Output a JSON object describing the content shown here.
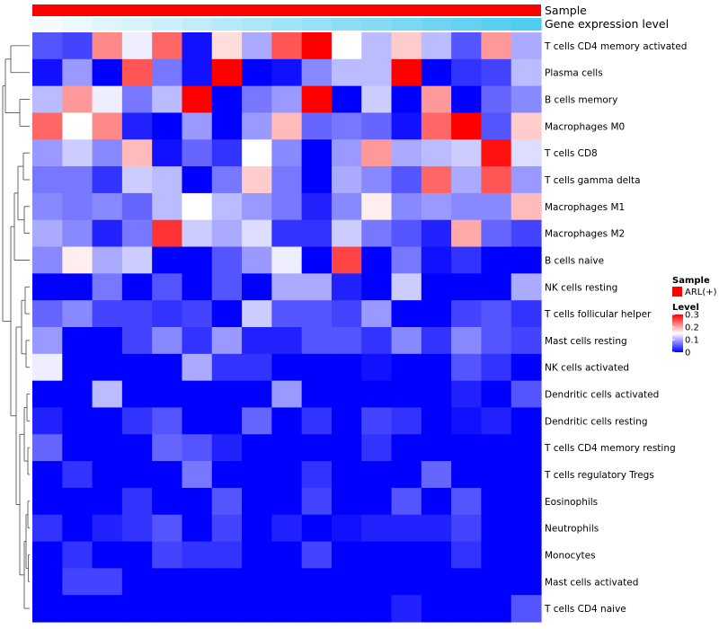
{
  "chart_data": {
    "type": "heatmap",
    "annotations": {
      "sample_label": "Sample",
      "expression_label": "Gene expression level",
      "sample_color": "#ff0000",
      "expression_gradient": [
        "#f5fbfd",
        "#4fcdf0"
      ]
    },
    "rows": [
      "T cells CD4 memory activated",
      "Plasma cells",
      "B cells memory",
      "Macrophages M0",
      "T cells CD8",
      "T cells gamma delta",
      "Macrophages M1",
      "Macrophages M2",
      "B cells naive",
      "NK cells resting",
      "T cells follicular helper",
      "Mast cells resting",
      "NK cells activated",
      "Dendritic cells activated",
      "Dendritic cells resting",
      "T cells CD4 memory resting",
      "T cells regulatory  Tregs",
      "Eosinophils",
      "Neutrophils",
      "Monocytes",
      "Mast cells activated",
      "T cells CD4 naive"
    ],
    "values": [
      [
        0.05,
        0.04,
        0.22,
        0.14,
        0.24,
        0.01,
        0.17,
        0.1,
        0.25,
        0.3,
        0.15,
        0.11,
        0.18,
        0.11,
        0.05,
        0.21,
        0.1
      ],
      [
        0.01,
        0.09,
        0.0,
        0.25,
        0.07,
        0.01,
        0.3,
        0.0,
        0.01,
        0.08,
        0.11,
        0.11,
        0.3,
        0.0,
        0.03,
        0.04,
        0.11
      ],
      [
        0.11,
        0.21,
        0.14,
        0.07,
        0.11,
        0.3,
        0.0,
        0.07,
        0.09,
        0.3,
        0.0,
        0.12,
        0.0,
        0.21,
        0.0,
        0.06,
        0.08
      ],
      [
        0.24,
        0.15,
        0.22,
        0.02,
        0.0,
        0.09,
        0.0,
        0.09,
        0.19,
        0.06,
        0.07,
        0.06,
        0.01,
        0.24,
        0.3,
        0.05,
        0.18
      ],
      [
        0.09,
        0.12,
        0.08,
        0.19,
        0.01,
        0.06,
        0.03,
        0.15,
        0.08,
        0.0,
        0.09,
        0.21,
        0.1,
        0.11,
        0.12,
        0.29,
        0.13
      ],
      [
        0.07,
        0.07,
        0.03,
        0.12,
        0.11,
        0.0,
        0.07,
        0.18,
        0.07,
        0.0,
        0.1,
        0.08,
        0.05,
        0.24,
        0.1,
        0.25,
        0.09
      ],
      [
        0.08,
        0.07,
        0.08,
        0.06,
        0.11,
        0.15,
        0.11,
        0.09,
        0.07,
        0.02,
        0.08,
        0.16,
        0.08,
        0.09,
        0.08,
        0.08,
        0.19
      ],
      [
        0.1,
        0.08,
        0.02,
        0.07,
        0.27,
        0.12,
        0.1,
        0.13,
        0.03,
        0.03,
        0.12,
        0.07,
        0.05,
        0.02,
        0.2,
        0.06,
        0.04
      ],
      [
        0.08,
        0.16,
        0.1,
        0.12,
        0.0,
        0.0,
        0.05,
        0.09,
        0.14,
        0.0,
        0.26,
        0.0,
        0.07,
        0.01,
        0.03,
        0.0,
        0.0
      ],
      [
        0.0,
        0.0,
        0.07,
        0.0,
        0.05,
        0.0,
        0.05,
        0.0,
        0.1,
        0.1,
        0.02,
        0.0,
        0.12,
        0.0,
        0.0,
        0.0,
        0.1
      ],
      [
        0.06,
        0.08,
        0.04,
        0.04,
        0.03,
        0.04,
        0.0,
        0.12,
        0.05,
        0.05,
        0.04,
        0.09,
        0.0,
        0.0,
        0.04,
        0.05,
        0.03
      ],
      [
        0.09,
        0.0,
        0.0,
        0.04,
        0.08,
        0.03,
        0.09,
        0.02,
        0.02,
        0.05,
        0.05,
        0.03,
        0.08,
        0.03,
        0.08,
        0.05,
        0.04
      ],
      [
        0.14,
        0.0,
        0.0,
        0.0,
        0.0,
        0.1,
        0.03,
        0.03,
        0.0,
        0.0,
        0.0,
        0.01,
        0.0,
        0.0,
        0.05,
        0.03,
        0.0
      ],
      [
        0.0,
        0.0,
        0.11,
        0.0,
        0.0,
        0.0,
        0.0,
        0.0,
        0.09,
        0.0,
        0.0,
        0.0,
        0.0,
        0.0,
        0.02,
        0.0,
        0.05
      ],
      [
        0.02,
        0.0,
        0.0,
        0.03,
        0.05,
        0.0,
        0.0,
        0.06,
        0.0,
        0.03,
        0.0,
        0.04,
        0.03,
        0.0,
        0.01,
        0.02,
        0.0
      ],
      [
        0.06,
        0.0,
        0.0,
        0.0,
        0.06,
        0.05,
        0.02,
        0.0,
        0.0,
        0.0,
        0.0,
        0.03,
        0.0,
        0.0,
        0.0,
        0.0,
        0.0
      ],
      [
        0.0,
        0.03,
        0.0,
        0.0,
        0.0,
        0.07,
        0.0,
        0.0,
        0.0,
        0.03,
        0.0,
        0.0,
        0.0,
        0.06,
        0.0,
        0.0,
        0.0
      ],
      [
        0.0,
        0.0,
        0.0,
        0.03,
        0.0,
        0.0,
        0.05,
        0.0,
        0.0,
        0.04,
        0.0,
        0.0,
        0.05,
        0.0,
        0.05,
        0.0,
        0.0
      ],
      [
        0.03,
        0.0,
        0.02,
        0.03,
        0.05,
        0.0,
        0.04,
        0.0,
        0.02,
        0.0,
        0.01,
        0.02,
        0.02,
        0.02,
        0.04,
        0.0,
        0.0
      ],
      [
        0.0,
        0.03,
        0.0,
        0.0,
        0.04,
        0.03,
        0.03,
        0.0,
        0.0,
        0.04,
        0.0,
        0.0,
        0.0,
        0.0,
        0.03,
        0.0,
        0.0
      ],
      [
        0.0,
        0.04,
        0.04,
        0.0,
        0.0,
        0.0,
        0.0,
        0.0,
        0.0,
        0.0,
        0.0,
        0.0,
        0.0,
        0.0,
        0.0,
        0.0,
        0.0
      ],
      [
        0.0,
        0.0,
        0.0,
        0.0,
        0.0,
        0.0,
        0.0,
        0.0,
        0.0,
        0.0,
        0.0,
        0.0,
        0.02,
        0.0,
        0.0,
        0.0,
        0.05
      ]
    ],
    "expression_levels": [
      0.0,
      0.05,
      0.1,
      0.15,
      0.2,
      0.25,
      0.3,
      0.35,
      0.4,
      0.45,
      0.5,
      0.55,
      0.6,
      0.65,
      0.7,
      0.75,
      0.8
    ],
    "color_scale": {
      "min": 0,
      "mid": 0.15,
      "max": 0.3,
      "low_color": "#0000ff",
      "mid_color": "#ffffff",
      "high_color": "#ff0000"
    },
    "legend": {
      "sample_title": "Sample",
      "sample_entry": "ARL(+)",
      "level_title": "Level",
      "level_ticks": [
        "0.3",
        "0.2",
        "0.1",
        "0"
      ],
      "position": "right"
    },
    "dendrogram": "rows"
  }
}
